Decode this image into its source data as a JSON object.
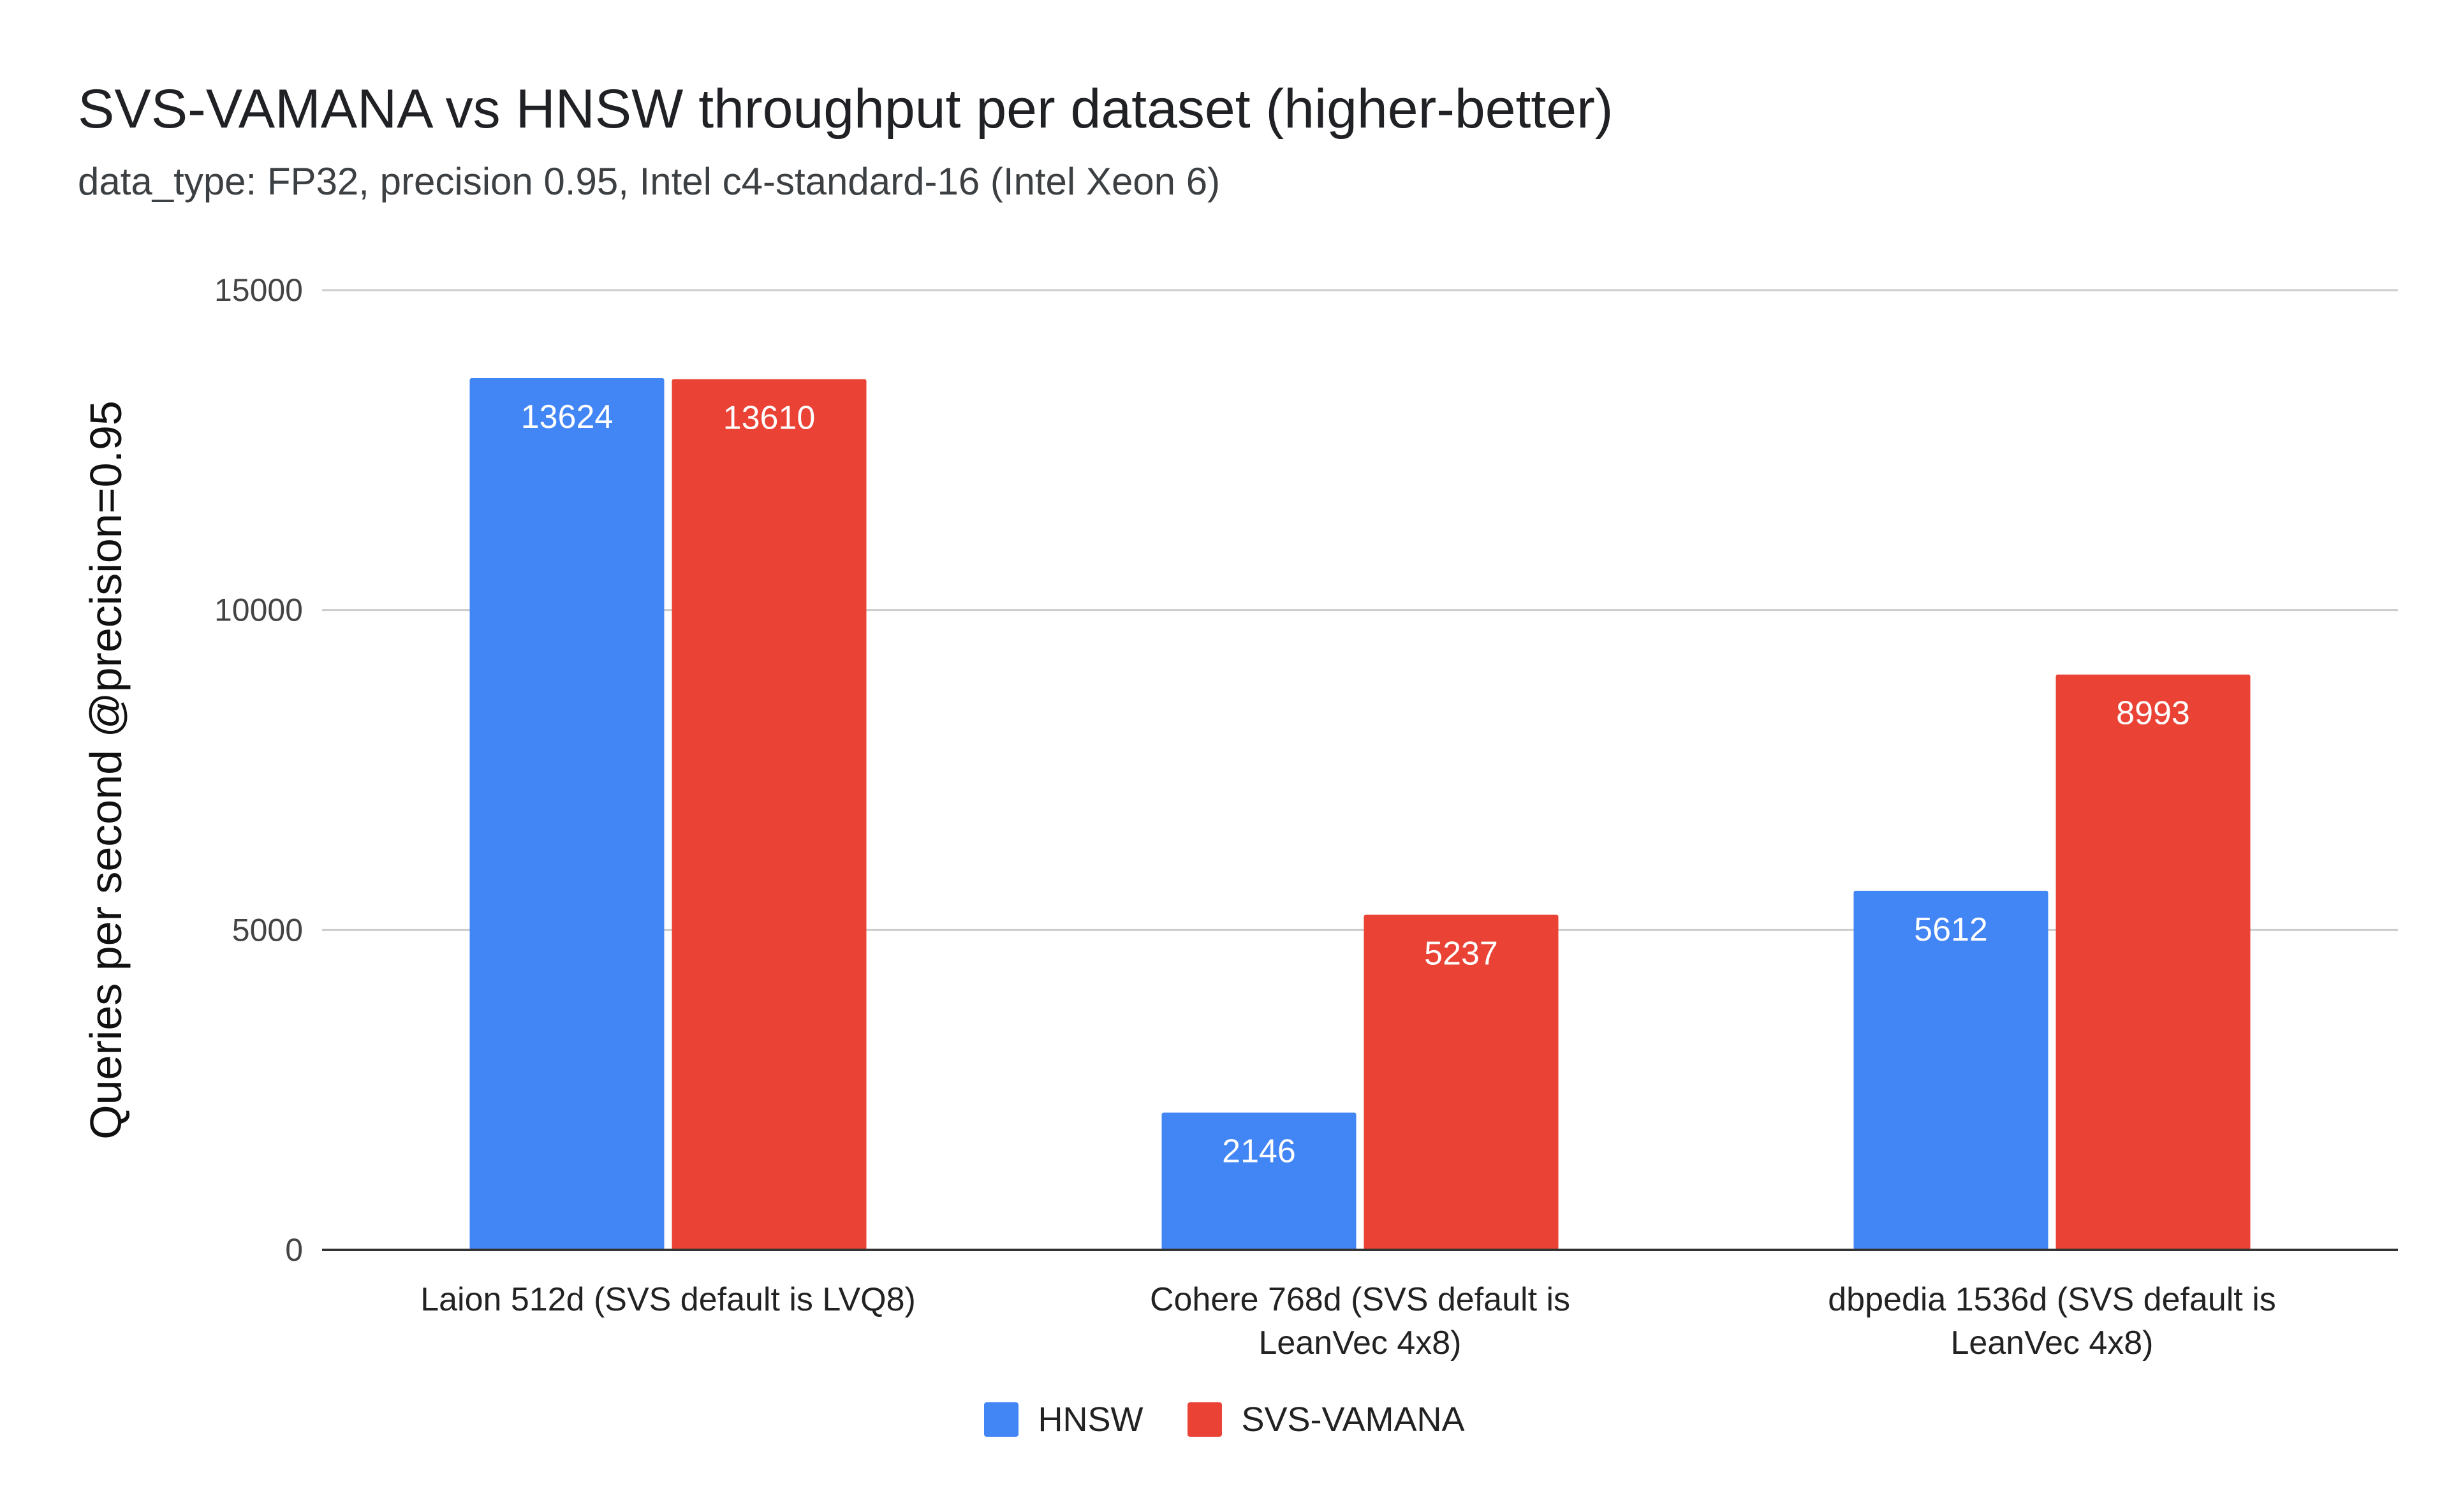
{
  "chart_data": {
    "type": "bar",
    "title": "SVS-VAMANA vs HNSW throughput per dataset (higher-better)",
    "subtitle": "data_type: FP32, precision 0.95, Intel c4-standard-16 (Intel Xeon 6)",
    "xlabel": "",
    "ylabel": "Queries per second @precision=0.95",
    "ylim": [
      0,
      15000
    ],
    "yticks": [
      0,
      5000,
      10000,
      15000
    ],
    "grid": true,
    "legend_position": "bottom",
    "categories": [
      [
        "Laion 512d (SVS default is LVQ8)"
      ],
      [
        "Cohere 768d (SVS default is",
        "LeanVec 4x8)"
      ],
      [
        "dbpedia 1536d (SVS default is",
        "LeanVec 4x8)"
      ]
    ],
    "series": [
      {
        "name": "HNSW",
        "color": "#4285f4",
        "values": [
          13624,
          2146,
          5612
        ]
      },
      {
        "name": "SVS-VAMANA",
        "color": "#ea4335",
        "values": [
          13610,
          5237,
          8993
        ]
      }
    ]
  }
}
